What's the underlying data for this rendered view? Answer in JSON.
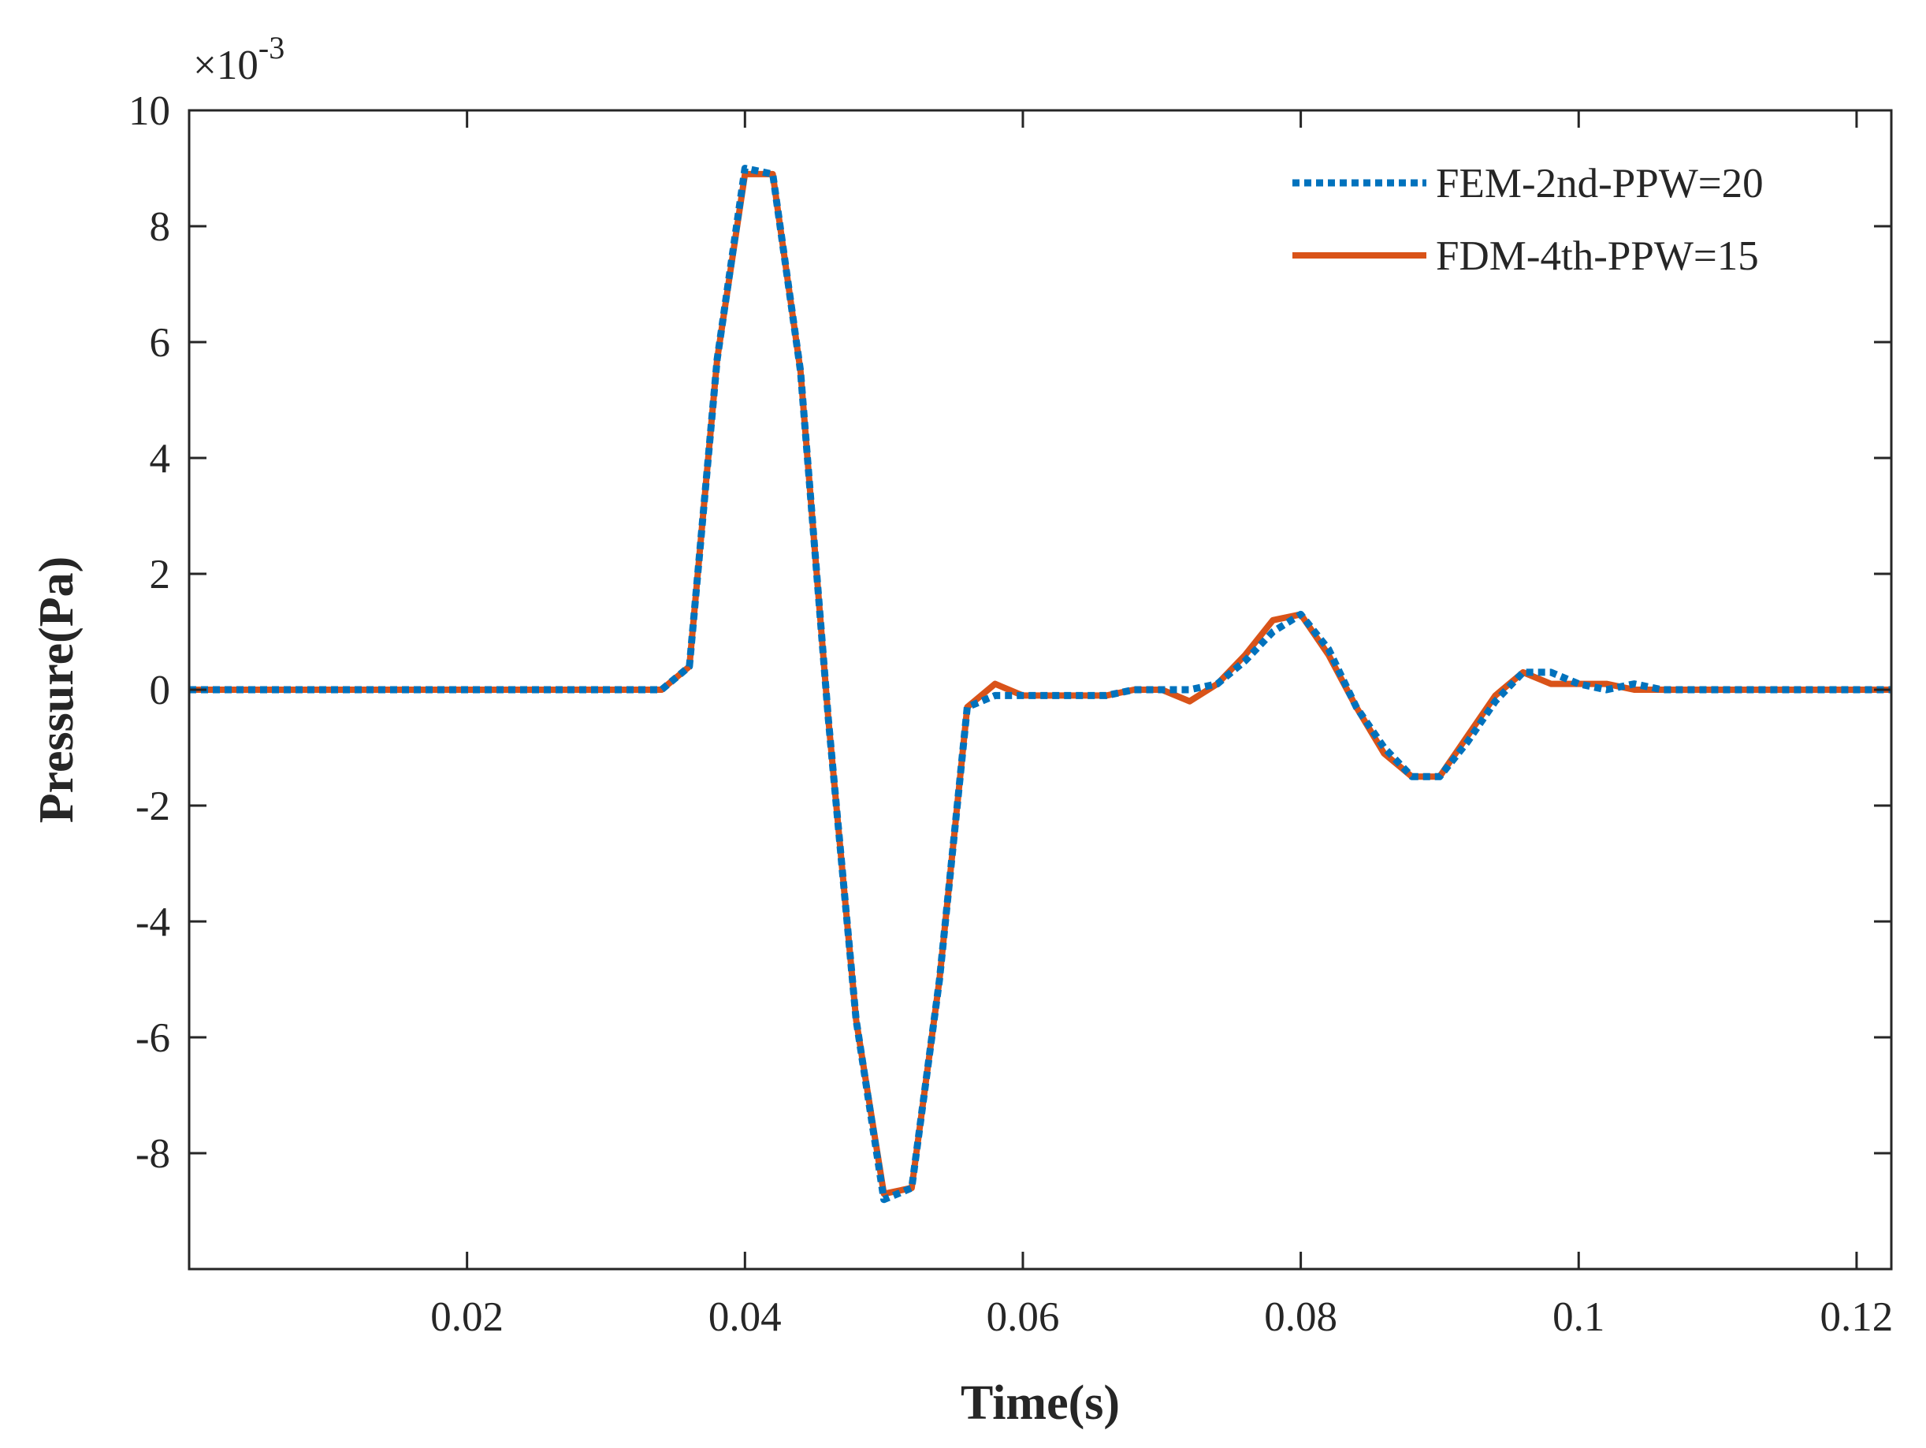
{
  "chart_data": {
    "type": "line",
    "xlabel": "Time(s)",
    "ylabel": "Pressure(Pa)",
    "y_exponent_label": "×10",
    "y_exponent_power": "-3",
    "xlim": [
      0.0,
      0.1225
    ],
    "ylim": [
      -10.0,
      10.0
    ],
    "x_ticks": [
      0.02,
      0.04,
      0.06,
      0.08,
      0.1,
      0.12
    ],
    "x_tick_labels": [
      "0.02",
      "0.04",
      "0.06",
      "0.08",
      "0.1",
      "0.12"
    ],
    "y_ticks": [
      -8,
      -6,
      -4,
      -2,
      0,
      2,
      4,
      6,
      8,
      10
    ],
    "y_tick_labels": [
      "-8",
      "-6",
      "-4",
      "-2",
      "0",
      "2",
      "4",
      "6",
      "8",
      "10"
    ],
    "grid": false,
    "legend_position": "top-right",
    "series": [
      {
        "name": "FEM-2nd-PPW=20",
        "color": "#0072BD",
        "style": "dotted",
        "x": [
          0.0,
          0.01,
          0.02,
          0.03,
          0.034,
          0.036,
          0.038,
          0.04,
          0.042,
          0.044,
          0.046,
          0.048,
          0.05,
          0.052,
          0.054,
          0.056,
          0.058,
          0.06,
          0.062,
          0.064,
          0.066,
          0.068,
          0.07,
          0.072,
          0.074,
          0.076,
          0.078,
          0.08,
          0.082,
          0.084,
          0.086,
          0.088,
          0.09,
          0.092,
          0.094,
          0.096,
          0.098,
          0.1,
          0.102,
          0.104,
          0.106,
          0.108,
          0.11,
          0.112,
          0.114,
          0.116,
          0.118,
          0.12,
          0.1225
        ],
        "y": [
          0.0,
          0.0,
          0.0,
          0.0,
          0.0,
          0.4,
          5.7,
          9.0,
          8.9,
          5.5,
          -0.5,
          -5.7,
          -8.8,
          -8.6,
          -5.0,
          -0.3,
          -0.1,
          -0.1,
          -0.1,
          -0.1,
          -0.1,
          0.0,
          0.0,
          0.0,
          0.1,
          0.5,
          1.0,
          1.3,
          0.7,
          -0.3,
          -1.0,
          -1.5,
          -1.5,
          -0.9,
          -0.2,
          0.3,
          0.3,
          0.1,
          0.0,
          0.1,
          0.0,
          0.0,
          0.0,
          0.0,
          0.0,
          0.0,
          0.0,
          0.0,
          0.0
        ]
      },
      {
        "name": "FDM-4th-PPW=15",
        "color": "#D95319",
        "style": "solid",
        "x": [
          0.0,
          0.01,
          0.02,
          0.03,
          0.034,
          0.036,
          0.038,
          0.04,
          0.042,
          0.044,
          0.046,
          0.048,
          0.05,
          0.052,
          0.054,
          0.056,
          0.058,
          0.06,
          0.062,
          0.064,
          0.066,
          0.068,
          0.07,
          0.072,
          0.074,
          0.076,
          0.078,
          0.08,
          0.082,
          0.084,
          0.086,
          0.088,
          0.09,
          0.092,
          0.094,
          0.096,
          0.098,
          0.1,
          0.102,
          0.104,
          0.106,
          0.108,
          0.11,
          0.112,
          0.114,
          0.116,
          0.118,
          0.12,
          0.1225
        ],
        "y": [
          0.0,
          0.0,
          0.0,
          0.0,
          0.0,
          0.4,
          5.7,
          8.9,
          8.9,
          5.5,
          -0.5,
          -5.7,
          -8.7,
          -8.6,
          -5.0,
          -0.3,
          0.1,
          -0.1,
          -0.1,
          -0.1,
          -0.1,
          0.0,
          0.0,
          -0.2,
          0.1,
          0.6,
          1.2,
          1.3,
          0.6,
          -0.3,
          -1.1,
          -1.5,
          -1.5,
          -0.8,
          -0.1,
          0.3,
          0.1,
          0.1,
          0.1,
          0.0,
          0.0,
          0.0,
          0.0,
          0.0,
          0.0,
          0.0,
          0.0,
          0.0,
          0.0
        ]
      }
    ]
  }
}
